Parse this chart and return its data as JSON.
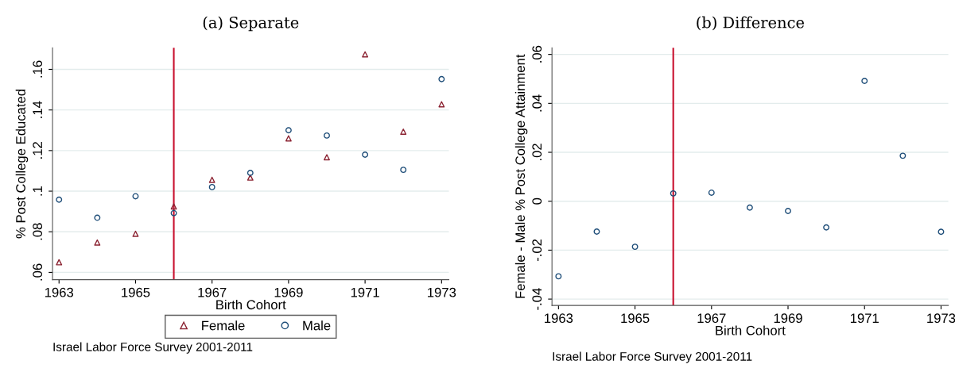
{
  "chart_data": [
    {
      "type": "scatter",
      "title": "(a) Separate",
      "xlabel": "Birth Cohort",
      "ylabel": "% Post College Educated",
      "x": [
        1963,
        1964,
        1965,
        1966,
        1967,
        1968,
        1969,
        1970,
        1971,
        1972,
        1973
      ],
      "series": [
        {
          "name": "Female",
          "color": "#8b2332",
          "marker": "triangle",
          "values": [
            0.065,
            0.0747,
            0.079,
            0.0925,
            0.1056,
            0.1067,
            0.126,
            0.1167,
            0.1674,
            0.1293,
            0.1428
          ]
        },
        {
          "name": "Male",
          "color": "#1f4e79",
          "marker": "circle",
          "values": [
            0.0958,
            0.0869,
            0.0975,
            0.0892,
            0.102,
            0.109,
            0.13,
            0.1274,
            0.118,
            0.1105,
            0.1552
          ]
        }
      ],
      "xlim": [
        1962.83,
        1973.19
      ],
      "xticks": [
        1963,
        1965,
        1967,
        1969,
        1971,
        1973
      ],
      "ylim": [
        0.0564,
        0.1706
      ],
      "yticks": [
        {
          "value": 0.06,
          "label": ".06"
        },
        {
          "value": 0.08,
          "label": ".08"
        },
        {
          "value": 0.1,
          "label": ".1"
        },
        {
          "value": 0.12,
          "label": ".12"
        },
        {
          "value": 0.14,
          "label": ".14"
        },
        {
          "value": 0.16,
          "label": ".16"
        }
      ],
      "ref_lines": [
        {
          "axis": "x",
          "value": 1966,
          "color": "#c8102e"
        }
      ],
      "grid": "y",
      "legend": "bottom",
      "annotations": [
        "Israel Labor Force Survey 2001-2011"
      ]
    },
    {
      "type": "scatter",
      "title": "(b) Difference",
      "xlabel": "Birth Cohort",
      "ylabel": "Female - Male % Post College Attainment",
      "x": [
        1963,
        1964,
        1965,
        1966,
        1967,
        1968,
        1969,
        1970,
        1971,
        1972,
        1973
      ],
      "series": [
        {
          "color": "#1f4e79",
          "marker": "circle",
          "values": [
            -0.0307,
            -0.0124,
            -0.0186,
            0.0032,
            0.0035,
            -0.0026,
            -0.004,
            -0.0107,
            0.0492,
            0.0186,
            -0.0125
          ]
        }
      ],
      "xlim": [
        1962.83,
        1973.19
      ],
      "xticks": [
        1963,
        1965,
        1967,
        1969,
        1971,
        1973
      ],
      "ylim": [
        -0.0426,
        0.0627
      ],
      "yticks": [
        {
          "value": -0.04,
          "label": "-.04"
        },
        {
          "value": -0.02,
          "label": "-.02"
        },
        0,
        {
          "value": 0.02,
          "label": ".02"
        },
        {
          "value": 0.04,
          "label": ".04"
        },
        {
          "value": 0.06,
          "label": ".06"
        }
      ],
      "ref_lines": [
        {
          "axis": "x",
          "value": 1966,
          "color": "#c8102e"
        }
      ],
      "grid": "y",
      "annotations": [
        "Israel Labor Force Survey 2001-2011"
      ]
    }
  ]
}
